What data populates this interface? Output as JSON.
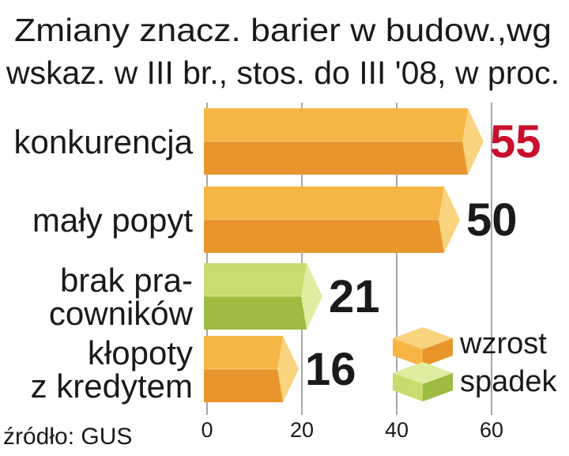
{
  "colors": {
    "increase_light": "#f5b645",
    "increase_dark": "#e8962c",
    "increase_cap": "#f9d37e",
    "decrease_light": "#c6dc6e",
    "decrease_dark": "#9dbc41",
    "decrease_cap": "#deed9f",
    "highlight_value": "#c8102e",
    "value_text": "#1a1a1a",
    "grid": "#8a8a8a"
  },
  "chart_data": {
    "type": "bar",
    "orientation": "horizontal",
    "title": "Zmiany znacz. barier w budow.,wg wskaz. w III br., stos. do III '08, w proc.",
    "title_lines": [
      "Zmiany znacz. barier w budow.,wg",
      "wskaz. w III br., stos. do III '08, w proc."
    ],
    "categories": [
      {
        "label_lines": [
          "konkurencja"
        ],
        "value": 55,
        "value_label": "55",
        "trend": "wzrost",
        "highlight": true
      },
      {
        "label_lines": [
          "mały popyt"
        ],
        "value": 50,
        "value_label": "50",
        "trend": "wzrost",
        "highlight": false
      },
      {
        "label_lines": [
          "brak pra-",
          "cowników"
        ],
        "value": 21,
        "value_label": "21",
        "trend": "spadek",
        "highlight": false
      },
      {
        "label_lines": [
          "kłopoty",
          "z kredytem"
        ],
        "value": 16,
        "value_label": "16",
        "trend": "wzrost",
        "highlight": false
      }
    ],
    "xlim": [
      0,
      60
    ],
    "xticks": [
      "0",
      "20",
      "40",
      "60"
    ],
    "grid": true,
    "legend": [
      {
        "label": "wzrost",
        "trend": "wzrost"
      },
      {
        "label": "spadek",
        "trend": "spadek"
      }
    ],
    "legend_position": "bottom-right",
    "source": "źródło: GUS"
  }
}
